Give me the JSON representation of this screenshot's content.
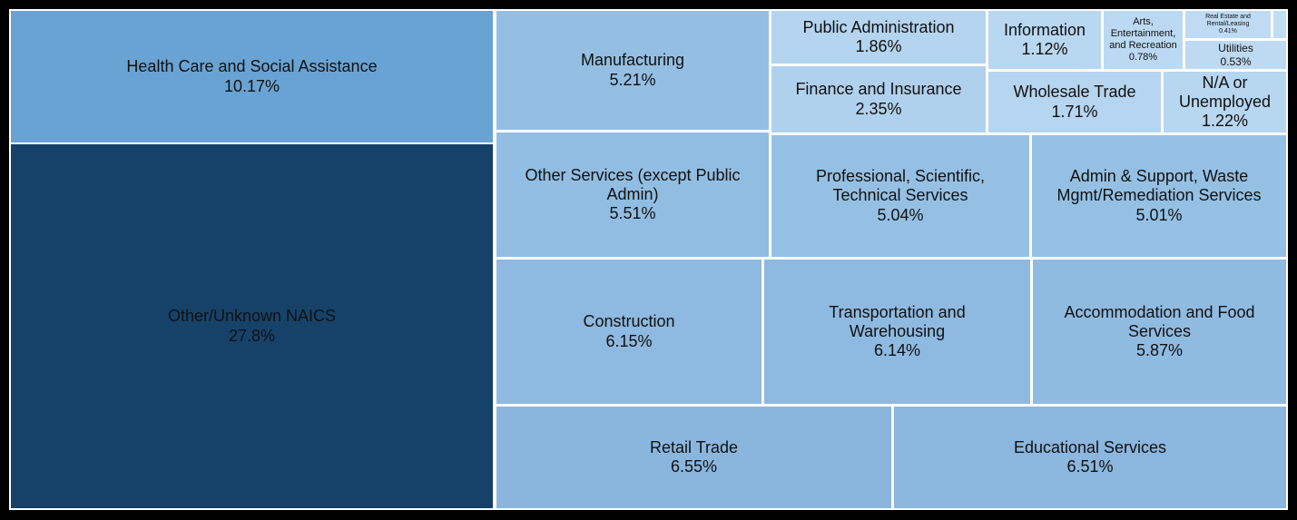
{
  "chart_data": {
    "type": "treemap",
    "title": "",
    "nodes": [
      {
        "name": "Other/Unknown NAICS",
        "value": 27.8,
        "label": "27.8%",
        "color": "#16426a"
      },
      {
        "name": "Health Care and Social Assistance",
        "value": 10.17,
        "label": "10.17%",
        "color": "#69a3d3"
      },
      {
        "name": "Manufacturing",
        "value": 5.21,
        "label": "5.21%",
        "color": "#94bfe3"
      },
      {
        "name": "Other Services (except Public Admin)",
        "value": 5.51,
        "label": "5.51%",
        "color": "#92bde2"
      },
      {
        "name": "Construction",
        "value": 6.15,
        "label": "6.15%",
        "color": "#8eb9e0"
      },
      {
        "name": "Retail Trade",
        "value": 6.55,
        "label": "6.55%",
        "color": "#8ab6de"
      },
      {
        "name": "Public Administration",
        "value": 1.86,
        "label": "1.86%",
        "color": "#b4d4ef"
      },
      {
        "name": "Finance and Insurance",
        "value": 2.35,
        "label": "2.35%",
        "color": "#b0d1ee"
      },
      {
        "name": "Information",
        "value": 1.12,
        "label": "1.12%",
        "color": "#b8d7f1"
      },
      {
        "name": "Arts, Entertainment, and Recreation",
        "value": 0.78,
        "label": "0.78%",
        "color": "#bbd9f2"
      },
      {
        "name": "Real Estate and Rental/Leasing",
        "value": 0.41,
        "label": "0.41%",
        "color": "#bedbf3"
      },
      {
        "name": "",
        "value": 0.05,
        "label": "",
        "color": "#c1ddf4"
      },
      {
        "name": "Utilities",
        "value": 0.53,
        "label": "0.53%",
        "color": "#bddaf2"
      },
      {
        "name": "Wholesale Trade",
        "value": 1.71,
        "label": "1.71%",
        "color": "#b5d5f0"
      },
      {
        "name": "N/A or Unemployed",
        "value": 1.22,
        "label": "1.22%",
        "color": "#b7d6f0"
      },
      {
        "name": "Professional, Scientific, Technical Services",
        "value": 5.04,
        "label": "5.04%",
        "color": "#95c0e4"
      },
      {
        "name": "Admin & Support, Waste Mgmt/Remediation Services",
        "value": 5.01,
        "label": "5.01%",
        "color": "#95c0e4"
      },
      {
        "name": "Transportation and Warehousing",
        "value": 6.14,
        "label": "6.14%",
        "color": "#8eb9e0"
      },
      {
        "name": "Accommodation and Food Services",
        "value": 5.87,
        "label": "5.87%",
        "color": "#90bbe1"
      },
      {
        "name": "Educational Services",
        "value": 6.51,
        "label": "6.51%",
        "color": "#8bb6de"
      }
    ]
  }
}
